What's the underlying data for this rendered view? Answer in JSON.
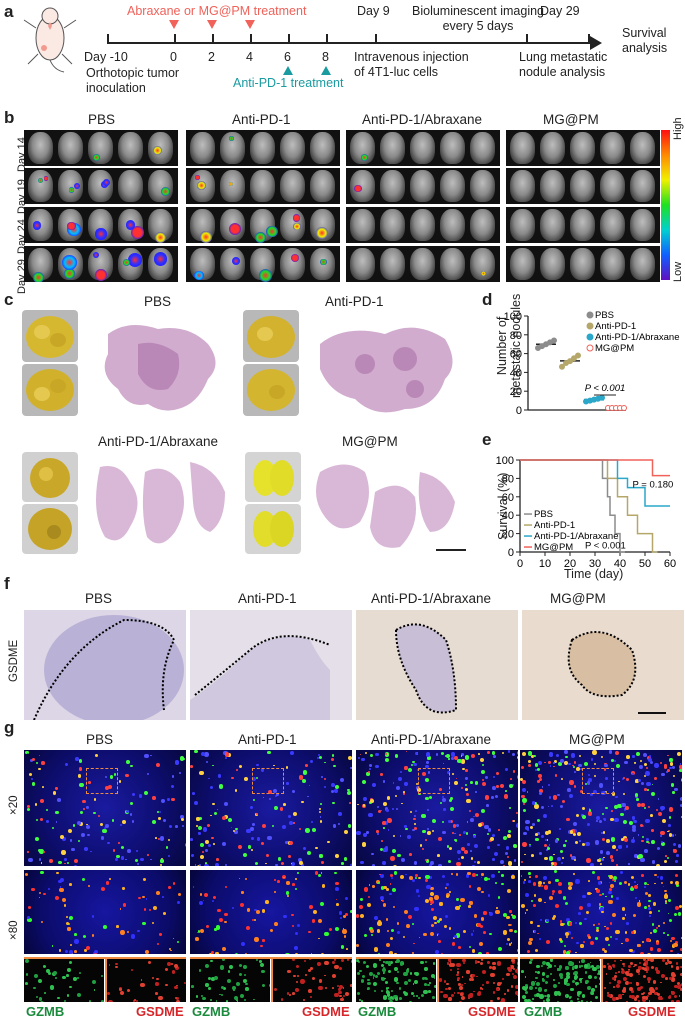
{
  "panels": {
    "a": "a",
    "b": "b",
    "c": "c",
    "d": "d",
    "e": "e",
    "f": "f",
    "g": "g"
  },
  "timeline": {
    "treatment_top": "Abraxane or MG@PM treatment",
    "treatment_bottom": "Anti-PD-1 treatment",
    "day_minus10": "Day -10",
    "ticks": [
      "0",
      "2",
      "4",
      "6",
      "8"
    ],
    "inoculation": "Orthotopic tumor\ninoculation",
    "day9": "Day 9",
    "imaging": "Bioluminescent imaging\nevery 5 days",
    "iv": "Intravenous injection\nof 4T1-luc cells",
    "day29": "Day 29",
    "lung": "Lung metastatic\nnodule analysis",
    "survival": "Survival\nanalysis",
    "colors": {
      "red": "#f0625a",
      "teal": "#1a9ba0"
    }
  },
  "bli": {
    "groups": [
      "PBS",
      "Anti-PD-1",
      "Anti-PD-1/Abraxane",
      "MG@PM"
    ],
    "days": [
      "Day 14",
      "Day 19",
      "Day 24",
      "Day 29"
    ],
    "scale_high": "High",
    "scale_low": "Low"
  },
  "histology": {
    "groups": [
      "PBS",
      "Anti-PD-1",
      "Anti-PD-1/Abraxane",
      "MG@PM"
    ]
  },
  "chart_d": {
    "ylabel": "Number of\nmetastatic nodules",
    "legend": [
      "PBS",
      "Anti-PD-1",
      "Anti-PD-1/Abraxane",
      "MG@PM"
    ],
    "pval": "P < 0.001"
  },
  "chart_e": {
    "ylabel": "Survival (%)",
    "xlabel": "Time (day)",
    "legend": [
      "PBS",
      "Anti-PD-1",
      "Anti-PD-1/Abraxane",
      "MG@PM"
    ],
    "p1": "P = 0.180",
    "p2": "P < 0.001"
  },
  "ihc": {
    "groups": [
      "PBS",
      "Anti-PD-1",
      "Anti-PD-1/Abraxane",
      "MG@PM"
    ],
    "row_label": "GSDME"
  },
  "fluo": {
    "groups": [
      "PBS",
      "Anti-PD-1",
      "Anti-PD-1/Abraxane",
      "MG@PM"
    ],
    "row1": "×20",
    "row2": "×80",
    "gzmb": "GZMB",
    "gsdme": "GSDME",
    "gzmb_color": "#1a8a3c",
    "gsdme_color": "#d6262a"
  },
  "chart_data": [
    {
      "type": "scatter",
      "ylabel": "Number of metastatic nodules",
      "ylim": [
        0,
        100
      ],
      "yticks": [
        0,
        20,
        40,
        60,
        80,
        100
      ],
      "series": [
        {
          "name": "PBS",
          "color": "#8c8c8c",
          "values": [
            66,
            68,
            70,
            72,
            74
          ]
        },
        {
          "name": "Anti-PD-1",
          "color": "#b5a76a",
          "values": [
            46,
            50,
            52,
            55,
            58
          ]
        },
        {
          "name": "Anti-PD-1/Abraxane",
          "color": "#2aa7c9",
          "values": [
            9,
            10,
            11,
            12,
            13
          ]
        },
        {
          "name": "MG@PM",
          "color": "#f0625a",
          "values": [
            0,
            0,
            0,
            0,
            0
          ]
        }
      ],
      "annotation": "P < 0.001"
    },
    {
      "type": "line",
      "xlabel": "Time (day)",
      "ylabel": "Survival (%)",
      "xlim": [
        0,
        60
      ],
      "ylim": [
        0,
        100
      ],
      "xticks": [
        0,
        10,
        20,
        30,
        40,
        50,
        60
      ],
      "yticks": [
        0,
        20,
        40,
        60,
        80,
        100
      ],
      "series": [
        {
          "name": "PBS",
          "color": "#8c8c8c",
          "x": [
            0,
            33,
            33,
            35,
            35,
            36,
            36,
            38,
            38,
            40,
            40,
            42
          ],
          "y": [
            100,
            100,
            80,
            80,
            60,
            60,
            40,
            40,
            20,
            20,
            0,
            0
          ]
        },
        {
          "name": "Anti-PD-1",
          "color": "#b5a76a",
          "x": [
            0,
            35,
            35,
            39,
            39,
            43,
            43,
            47,
            47,
            53,
            53,
            55
          ],
          "y": [
            100,
            100,
            80,
            80,
            60,
            60,
            40,
            40,
            20,
            20,
            0,
            0
          ]
        },
        {
          "name": "Anti-PD-1/Abraxane",
          "color": "#2aa7c9",
          "x": [
            0,
            39,
            39,
            43,
            43,
            50,
            50,
            60
          ],
          "y": [
            100,
            100,
            80,
            80,
            70,
            70,
            50,
            50
          ]
        },
        {
          "name": "MG@PM",
          "color": "#f0625a",
          "x": [
            0,
            53,
            53,
            60
          ],
          "y": [
            100,
            100,
            83,
            83
          ]
        }
      ],
      "annotations": [
        "P = 0.180",
        "P < 0.001"
      ]
    }
  ]
}
